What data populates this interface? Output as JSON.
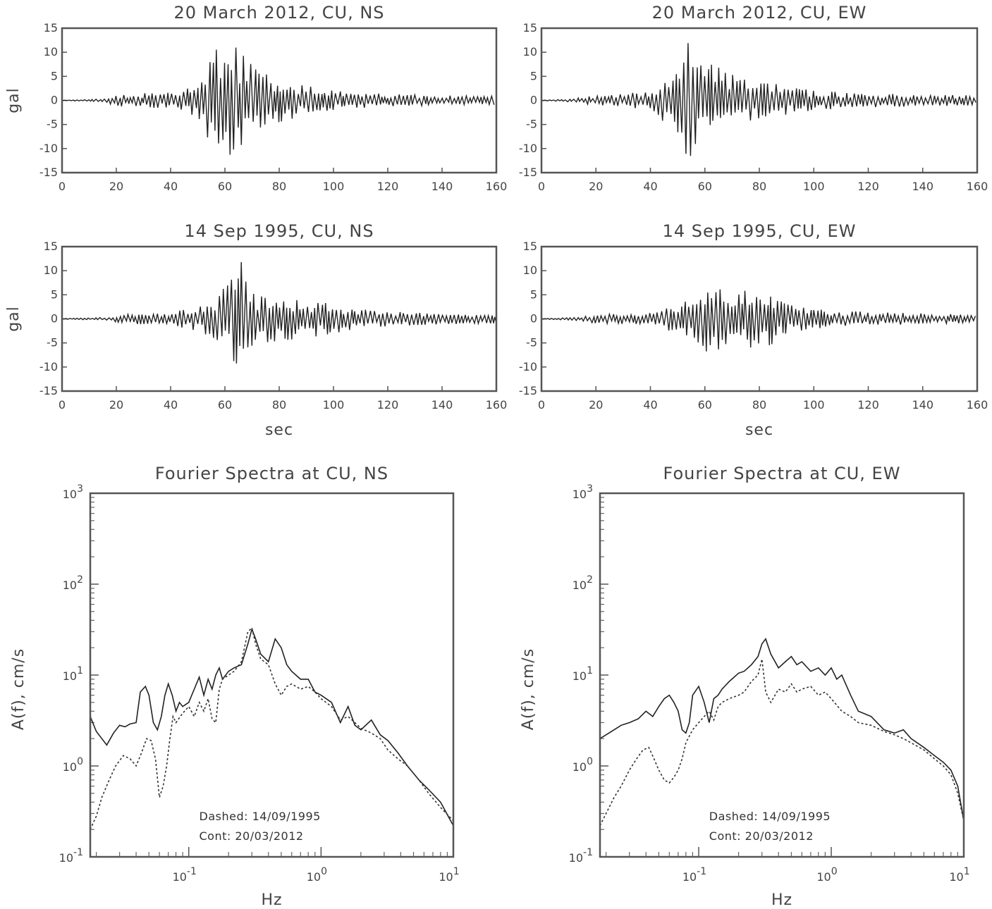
{
  "chart_data": [
    {
      "type": "line",
      "id": "ts-2012-ns",
      "title": "20 March 2012, CU, NS",
      "xlabel": "",
      "ylabel": "gal",
      "xlim": [
        0,
        160
      ],
      "ylim": [
        -15,
        15
      ],
      "xticks": [
        0,
        20,
        40,
        60,
        80,
        100,
        120,
        140,
        160
      ],
      "yticks": [
        -15,
        -10,
        -5,
        0,
        5,
        10,
        15
      ],
      "envelope": [
        [
          0,
          0.05
        ],
        [
          14,
          0.3
        ],
        [
          20,
          1.2
        ],
        [
          30,
          1.5
        ],
        [
          40,
          1.8
        ],
        [
          48,
          3.0
        ],
        [
          52,
          6.0
        ],
        [
          56,
          11.5
        ],
        [
          60,
          11.5
        ],
        [
          64,
          11.0
        ],
        [
          68,
          8.5
        ],
        [
          72,
          6.0
        ],
        [
          80,
          4.5
        ],
        [
          90,
          3.0
        ],
        [
          100,
          2.0
        ],
        [
          110,
          1.6
        ],
        [
          120,
          1.3
        ],
        [
          140,
          1.0
        ],
        [
          160,
          0.9
        ]
      ]
    },
    {
      "type": "line",
      "id": "ts-2012-ew",
      "title": "20 March 2012, CU, EW",
      "xlabel": "",
      "ylabel": "",
      "xlim": [
        0,
        160
      ],
      "ylim": [
        -15,
        15
      ],
      "xticks": [
        0,
        20,
        40,
        60,
        80,
        100,
        120,
        140,
        160
      ],
      "yticks": [
        -15,
        -10,
        -5,
        0,
        5,
        10,
        15
      ],
      "envelope": [
        [
          0,
          0.05
        ],
        [
          10,
          0.3
        ],
        [
          20,
          1.0
        ],
        [
          30,
          1.3
        ],
        [
          40,
          2.0
        ],
        [
          46,
          5.0
        ],
        [
          50,
          6.5
        ],
        [
          54,
          13.5
        ],
        [
          58,
          8.0
        ],
        [
          62,
          9.5
        ],
        [
          66,
          6.0
        ],
        [
          72,
          5.0
        ],
        [
          80,
          4.0
        ],
        [
          90,
          3.0
        ],
        [
          100,
          2.0
        ],
        [
          120,
          1.4
        ],
        [
          140,
          1.2
        ],
        [
          160,
          1.0
        ]
      ]
    },
    {
      "type": "line",
      "id": "ts-1995-ns",
      "title": "14 Sep 1995, CU, NS",
      "xlabel": "sec",
      "ylabel": "gal",
      "xlim": [
        0,
        160
      ],
      "ylim": [
        -15,
        15
      ],
      "xticks": [
        0,
        20,
        40,
        60,
        80,
        100,
        120,
        140,
        160
      ],
      "yticks": [
        -15,
        -10,
        -5,
        0,
        5,
        10,
        15
      ],
      "envelope": [
        [
          0,
          0.05
        ],
        [
          16,
          0.3
        ],
        [
          24,
          1.0
        ],
        [
          40,
          1.3
        ],
        [
          50,
          2.5
        ],
        [
          56,
          4.0
        ],
        [
          62,
          8.0
        ],
        [
          66,
          12.0
        ],
        [
          70,
          5.5
        ],
        [
          80,
          4.5
        ],
        [
          90,
          4.0
        ],
        [
          100,
          3.0
        ],
        [
          110,
          2.0
        ],
        [
          120,
          1.5
        ],
        [
          140,
          1.1
        ],
        [
          160,
          0.9
        ]
      ]
    },
    {
      "type": "line",
      "id": "ts-1995-ew",
      "title": "14 Sep 1995, CU, EW",
      "xlabel": "sec",
      "ylabel": "",
      "xlim": [
        0,
        160
      ],
      "ylim": [
        -15,
        15
      ],
      "xticks": [
        0,
        20,
        40,
        60,
        80,
        100,
        120,
        140,
        160
      ],
      "yticks": [
        -15,
        -10,
        -5,
        0,
        5,
        10,
        15
      ],
      "envelope": [
        [
          0,
          0.05
        ],
        [
          12,
          0.3
        ],
        [
          20,
          0.9
        ],
        [
          40,
          1.2
        ],
        [
          50,
          3.0
        ],
        [
          56,
          5.0
        ],
        [
          60,
          7.0
        ],
        [
          64,
          6.5
        ],
        [
          70,
          5.5
        ],
        [
          76,
          6.0
        ],
        [
          84,
          5.5
        ],
        [
          90,
          3.0
        ],
        [
          100,
          2.0
        ],
        [
          120,
          1.4
        ],
        [
          140,
          1.1
        ],
        [
          160,
          0.8
        ]
      ]
    },
    {
      "type": "line",
      "id": "fs-ns",
      "title": "Fourier Spectra at CU, NS",
      "xlabel": "Hz",
      "ylabel": "A(f), cm/s",
      "xscale": "log",
      "yscale": "log",
      "xlim": [
        0.018,
        10
      ],
      "ylim": [
        0.1,
        1000
      ],
      "xticks": [
        0.1,
        1,
        10
      ],
      "xticklabels": [
        [
          "10",
          "-1"
        ],
        [
          "10",
          "0"
        ],
        [
          "10",
          "1"
        ]
      ],
      "yticks": [
        0.1,
        1,
        10,
        100,
        1000
      ],
      "yticklabels": [
        [
          "10",
          "-1"
        ],
        [
          "10",
          "0"
        ],
        [
          "10",
          "1"
        ],
        [
          "10",
          "2"
        ],
        [
          "10",
          "3"
        ]
      ],
      "annotations": [
        "Dashed: 14/09/1995",
        "Cont: 20/03/2012"
      ],
      "series": [
        {
          "style": "solid",
          "x": [
            0.018,
            0.02,
            0.022,
            0.024,
            0.027,
            0.03,
            0.033,
            0.036,
            0.04,
            0.043,
            0.047,
            0.05,
            0.054,
            0.058,
            0.062,
            0.066,
            0.07,
            0.075,
            0.08,
            0.085,
            0.09,
            0.1,
            0.11,
            0.12,
            0.13,
            0.14,
            0.15,
            0.16,
            0.17,
            0.18,
            0.2,
            0.22,
            0.25,
            0.28,
            0.3,
            0.32,
            0.35,
            0.4,
            0.45,
            0.5,
            0.55,
            0.6,
            0.7,
            0.8,
            0.9,
            1.0,
            1.2,
            1.4,
            1.6,
            1.8,
            2.0,
            2.4,
            2.8,
            3.2,
            3.8,
            4.5,
            5.5,
            6.5,
            8,
            10
          ],
          "y": [
            3.5,
            2.4,
            2.0,
            1.7,
            2.3,
            2.8,
            2.7,
            2.9,
            3.0,
            6.5,
            7.5,
            6.0,
            3.0,
            2.5,
            3.5,
            6.0,
            8.0,
            6.0,
            4.0,
            5.0,
            4.5,
            5.0,
            7.0,
            9.5,
            6.0,
            9.0,
            7.0,
            10.0,
            12.0,
            9.0,
            11.0,
            12.0,
            13.0,
            22.0,
            32.0,
            25.0,
            17.0,
            14.0,
            25.0,
            20.0,
            13.0,
            11.0,
            9.0,
            9.0,
            6.5,
            6.0,
            5.0,
            3.0,
            4.5,
            2.8,
            2.5,
            3.2,
            2.2,
            1.9,
            1.4,
            1.0,
            0.7,
            0.55,
            0.4,
            0.22
          ]
        },
        {
          "style": "dashed",
          "x": [
            0.018,
            0.02,
            0.022,
            0.025,
            0.028,
            0.032,
            0.036,
            0.04,
            0.044,
            0.048,
            0.052,
            0.056,
            0.06,
            0.064,
            0.068,
            0.072,
            0.076,
            0.08,
            0.09,
            0.1,
            0.11,
            0.12,
            0.13,
            0.14,
            0.15,
            0.16,
            0.17,
            0.18,
            0.2,
            0.22,
            0.25,
            0.28,
            0.3,
            0.32,
            0.35,
            0.4,
            0.45,
            0.5,
            0.55,
            0.6,
            0.7,
            0.8,
            0.9,
            1.0,
            1.2,
            1.4,
            1.6,
            1.8,
            2.0,
            2.4,
            2.8,
            3.2,
            3.8,
            4.5,
            5.5,
            6.5,
            8,
            10
          ],
          "y": [
            0.2,
            0.28,
            0.45,
            0.7,
            1.0,
            1.3,
            1.2,
            1.0,
            1.4,
            2.0,
            1.9,
            1.2,
            0.45,
            0.6,
            1.0,
            2.0,
            3.5,
            3.0,
            3.8,
            4.5,
            3.5,
            5.0,
            4.0,
            5.5,
            3.3,
            3.0,
            7.0,
            9.0,
            10.0,
            11.0,
            14.0,
            30.0,
            33.0,
            22.0,
            15.0,
            13.0,
            8.0,
            6.0,
            7.5,
            8.0,
            7.0,
            7.5,
            6.5,
            5.5,
            4.5,
            3.2,
            3.5,
            3.0,
            2.6,
            2.3,
            2.0,
            1.5,
            1.2,
            1.0,
            0.7,
            0.5,
            0.35,
            0.25
          ]
        }
      ]
    },
    {
      "type": "line",
      "id": "fs-ew",
      "title": "Fourier Spectra at CU, EW",
      "xlabel": "Hz",
      "ylabel": "A(f), cm/s",
      "xscale": "log",
      "yscale": "log",
      "xlim": [
        0.018,
        10
      ],
      "ylim": [
        0.1,
        1000
      ],
      "xticks": [
        0.1,
        1,
        10
      ],
      "xticklabels": [
        [
          "10",
          "-1"
        ],
        [
          "10",
          "0"
        ],
        [
          "10",
          "1"
        ]
      ],
      "yticks": [
        0.1,
        1,
        10,
        100,
        1000
      ],
      "yticklabels": [
        [
          "10",
          "-1"
        ],
        [
          "10",
          "0"
        ],
        [
          "10",
          "1"
        ],
        [
          "10",
          "2"
        ],
        [
          "10",
          "3"
        ]
      ],
      "annotations": [
        "Dashed: 14/09/1995",
        "Cont: 20/03/2012"
      ],
      "series": [
        {
          "style": "solid",
          "x": [
            0.018,
            0.02,
            0.023,
            0.026,
            0.03,
            0.035,
            0.04,
            0.045,
            0.05,
            0.055,
            0.06,
            0.065,
            0.07,
            0.075,
            0.08,
            0.085,
            0.09,
            0.1,
            0.11,
            0.12,
            0.13,
            0.14,
            0.15,
            0.17,
            0.2,
            0.22,
            0.25,
            0.28,
            0.3,
            0.32,
            0.35,
            0.4,
            0.45,
            0.5,
            0.55,
            0.6,
            0.7,
            0.8,
            0.9,
            1.0,
            1.1,
            1.2,
            1.4,
            1.6,
            2.0,
            2.5,
            3.0,
            3.5,
            4.0,
            5.0,
            6.0,
            7.0,
            8.0,
            9.0,
            10
          ],
          "y": [
            2.0,
            2.2,
            2.5,
            2.8,
            3.0,
            3.3,
            4.0,
            3.5,
            4.5,
            5.5,
            6.0,
            5.0,
            4.0,
            2.5,
            2.3,
            3.0,
            6.0,
            7.5,
            5.0,
            3.0,
            5.5,
            6.0,
            7.0,
            8.5,
            10.5,
            11.0,
            13.0,
            16.0,
            22.0,
            25.0,
            17.0,
            12.0,
            14.0,
            16.0,
            13.0,
            14.0,
            11.0,
            12.0,
            10.0,
            12.0,
            9.0,
            10.0,
            6.0,
            4.0,
            3.5,
            2.5,
            2.3,
            2.5,
            2.0,
            1.6,
            1.3,
            1.1,
            0.9,
            0.6,
            0.25
          ]
        },
        {
          "style": "dashed",
          "x": [
            0.018,
            0.02,
            0.023,
            0.026,
            0.03,
            0.034,
            0.038,
            0.042,
            0.046,
            0.05,
            0.055,
            0.06,
            0.065,
            0.07,
            0.075,
            0.08,
            0.09,
            0.1,
            0.11,
            0.12,
            0.13,
            0.14,
            0.15,
            0.17,
            0.2,
            0.22,
            0.25,
            0.28,
            0.3,
            0.32,
            0.35,
            0.4,
            0.45,
            0.5,
            0.55,
            0.6,
            0.7,
            0.8,
            0.9,
            1.0,
            1.2,
            1.4,
            1.6,
            2.0,
            2.5,
            3.0,
            3.5,
            4.0,
            5.0,
            6.0,
            7.0,
            8.0,
            9.0,
            10
          ],
          "y": [
            0.22,
            0.3,
            0.45,
            0.6,
            0.9,
            1.2,
            1.5,
            1.6,
            1.2,
            0.9,
            0.7,
            0.65,
            0.75,
            0.9,
            1.2,
            1.8,
            2.5,
            3.0,
            3.5,
            4.0,
            3.2,
            4.5,
            5.0,
            5.5,
            6.0,
            6.5,
            8.5,
            10.0,
            15.0,
            6.5,
            5.0,
            7.0,
            6.5,
            8.0,
            6.5,
            7.0,
            7.5,
            6.0,
            6.5,
            5.5,
            4.0,
            3.5,
            3.0,
            2.8,
            2.4,
            2.2,
            2.0,
            1.8,
            1.5,
            1.2,
            1.0,
            0.8,
            0.5,
            0.25
          ]
        }
      ]
    }
  ]
}
